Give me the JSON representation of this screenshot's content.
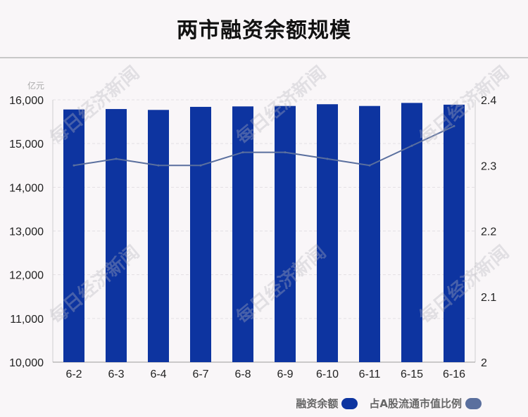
{
  "title": "两市融资余额规模",
  "watermark": "每日经济新闻",
  "chart_data": {
    "type": "bar",
    "categories": [
      "6-2",
      "6-3",
      "6-4",
      "6-7",
      "6-8",
      "6-9",
      "6-10",
      "6-11",
      "6-15",
      "6-16"
    ],
    "series": [
      {
        "name": "融资余额",
        "type": "bar",
        "axis": "left",
        "color": "#0d34a0",
        "values": [
          15780,
          15790,
          15770,
          15840,
          15850,
          15860,
          15900,
          15860,
          15930,
          15890
        ]
      },
      {
        "name": "占A股流通市值比例",
        "type": "line",
        "axis": "right",
        "color": "#5a6f9e",
        "values": [
          2.3,
          2.31,
          2.3,
          2.3,
          2.32,
          2.32,
          2.31,
          2.3,
          2.33,
          2.36
        ]
      }
    ],
    "y_left": {
      "unit": "亿元",
      "range": [
        10000,
        16000
      ],
      "ticks": [
        "10,000",
        "11,000",
        "12,000",
        "13,000",
        "14,000",
        "15,000",
        "16,000"
      ]
    },
    "y_right": {
      "range": [
        2,
        2.4
      ],
      "ticks": [
        "2",
        "2.1",
        "2.2",
        "2.3",
        "2.4"
      ]
    },
    "grid": true,
    "legend_position": "bottom-right"
  }
}
